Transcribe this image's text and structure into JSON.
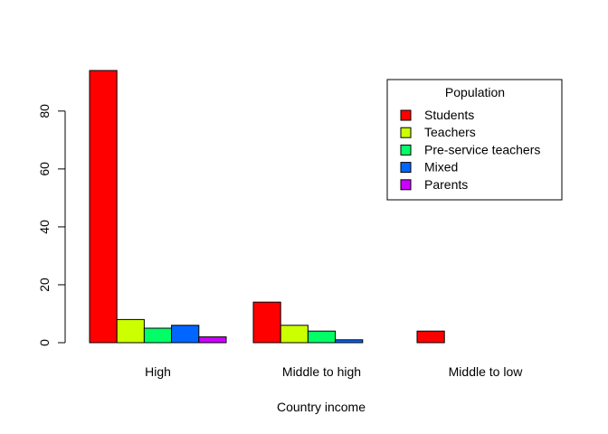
{
  "chart_data": {
    "type": "bar",
    "grouped": true,
    "xlabel": "Country income",
    "ylabel": "",
    "ylim": [
      0,
      94
    ],
    "yticks": [
      0,
      20,
      40,
      60,
      80
    ],
    "categories": [
      "High",
      "Middle to high",
      "Middle to low"
    ],
    "series": [
      {
        "name": "Students",
        "color": "#ff0000",
        "values": [
          94,
          14,
          4
        ]
      },
      {
        "name": "Teachers",
        "color": "#ccff00",
        "values": [
          8,
          6,
          0
        ]
      },
      {
        "name": "Pre-service teachers",
        "color": "#00ff66",
        "values": [
          5,
          4,
          0
        ]
      },
      {
        "name": "Mixed",
        "color": "#0066ff",
        "values": [
          6,
          1,
          0
        ]
      },
      {
        "name": "Parents",
        "color": "#cc00ff",
        "values": [
          2,
          0,
          0
        ]
      }
    ],
    "legend": {
      "title": "Population",
      "position": "top-right"
    }
  }
}
